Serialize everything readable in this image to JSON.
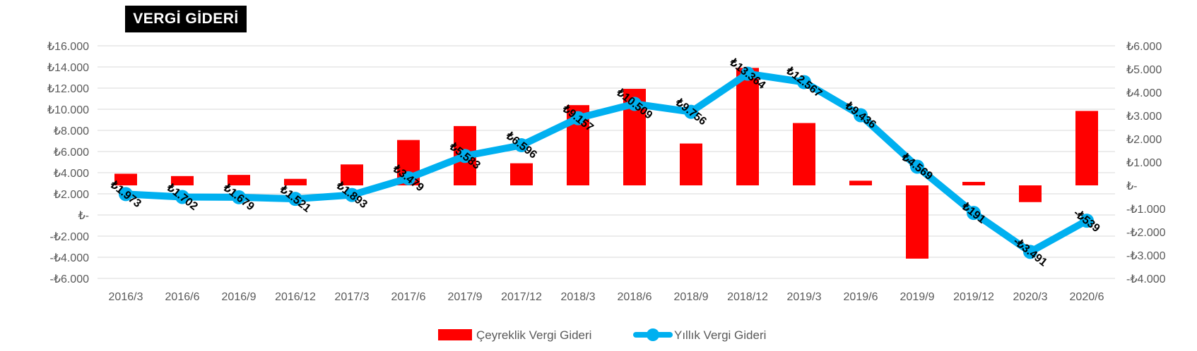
{
  "title": "VERGİ GİDERİ",
  "colors": {
    "bar": "#ff0000",
    "line": "#00b0f0",
    "grid": "#d9d9d9",
    "text": "#595959"
  },
  "chart_data": {
    "type": "bar+line",
    "title": "VERGİ GİDERİ",
    "categories": [
      "2016/3",
      "2016/6",
      "2016/9",
      "2016/12",
      "2017/3",
      "2017/6",
      "2017/9",
      "2017/12",
      "2018/3",
      "2018/6",
      "2018/9",
      "2018/12",
      "2019/3",
      "2019/6",
      "2019/9",
      "2019/12",
      "2020/3",
      "2020/6"
    ],
    "left_axis": {
      "ylim": [
        -6000,
        16000
      ],
      "ticks": [
        16000,
        14000,
        12000,
        10000,
        8000,
        6000,
        4000,
        2000,
        0,
        -2000,
        -4000,
        -6000
      ],
      "tick_labels": [
        "₺16.000",
        "₺14.000",
        "₺12.000",
        "₺10.000",
        "₺8.000",
        "₺6.000",
        "₺4.000",
        "₺2.000",
        "₺-",
        "-₺2.000",
        "-₺4.000",
        "-₺6.000"
      ]
    },
    "right_axis": {
      "ylim": [
        -4000,
        6000
      ],
      "ticks": [
        6000,
        5000,
        4000,
        3000,
        2000,
        1000,
        0,
        -1000,
        -2000,
        -3000,
        -4000
      ],
      "tick_labels": [
        "₺6.000",
        "₺5.000",
        "₺4.000",
        "₺3.000",
        "₺2.000",
        "₺1.000",
        "₺-",
        "-₺1.000",
        "-₺2.000",
        "-₺3.000",
        "-₺4.000"
      ]
    },
    "series": [
      {
        "name": "Çeyreklik Vergi Gideri",
        "type": "bar",
        "axis": "right",
        "values": [
          500,
          400,
          450,
          280,
          900,
          1950,
          2550,
          950,
          3450,
          4150,
          1800,
          5050,
          2680,
          200,
          -3150,
          150,
          -720,
          3200
        ]
      },
      {
        "name": "Yıllık Vergi Gideri",
        "type": "line",
        "axis": "left",
        "values": [
          1973,
          1702,
          1679,
          1521,
          1893,
          3479,
          5583,
          6596,
          9157,
          10509,
          9756,
          13364,
          12567,
          9436,
          4569,
          191,
          -3491,
          -539
        ],
        "labels": [
          "₺1.973",
          "₺1.702",
          "₺1.679",
          "₺1.521",
          "₺1.893",
          "₺3.479",
          "₺5.583",
          "₺6.596",
          "₺9.157",
          "₺10.509",
          "₺9.756",
          "₺13.364",
          "₺12.567",
          "₺9.436",
          "₺4.569",
          "₺191",
          "-₺3.491",
          "-₺539"
        ]
      }
    ],
    "legend": {
      "position": "bottom"
    },
    "grid": true
  }
}
